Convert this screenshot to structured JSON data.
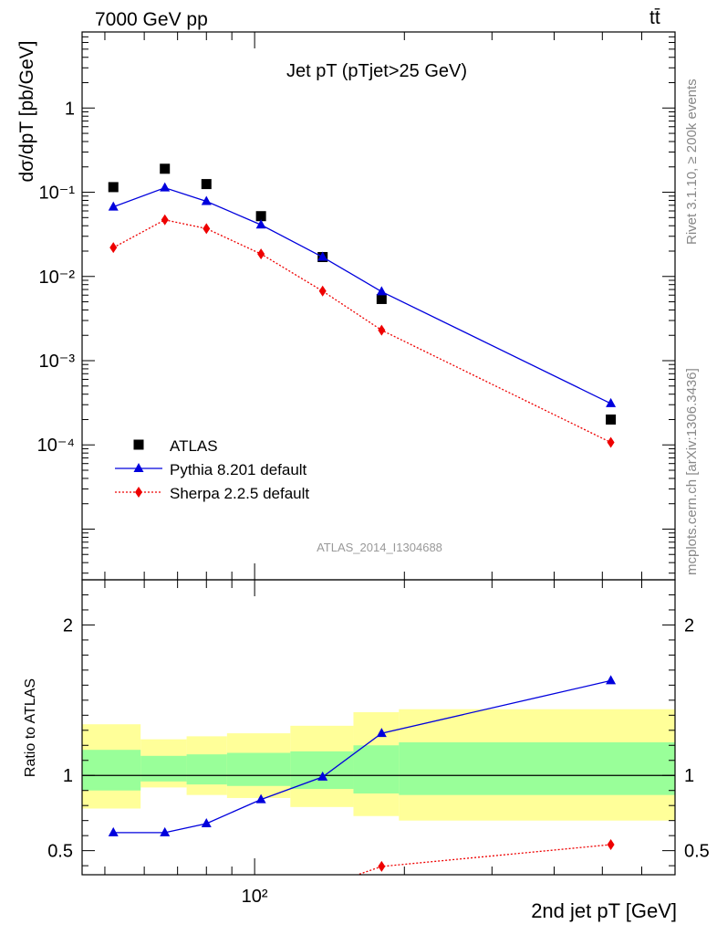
{
  "header": {
    "left": "7000 GeV pp",
    "right": "tt̄"
  },
  "side_labels": {
    "rivet": "Rivet 3.1.10, ≥ 200k events",
    "mcplots": "mcplots.cern.ch [arXiv:1306.3436]"
  },
  "chart_data": [
    {
      "type": "scatter",
      "title": "Jet pT (pTjet>25 GeV)",
      "ylabel": "dσ/dpT [pb/GeV]",
      "xlabel": "2nd jet pT [GeV]",
      "xscale": "log",
      "yscale": "log",
      "xlim": [
        45,
        700
      ],
      "ylim": [
        2.5e-06,
        8
      ],
      "x_tick_labels": [
        "10²"
      ],
      "y_tick_labels": [
        "10⁻⁴",
        "10⁻³",
        "10⁻²",
        "10⁻¹",
        "1"
      ],
      "watermark": "ATLAS_2014_I1304688",
      "legend_position": "lower-left",
      "x": [
        52,
        66,
        80,
        103,
        137,
        180,
        520
      ],
      "series": [
        {
          "name": "ATLAS",
          "color": "#000000",
          "marker": "square",
          "values": [
            0.115,
            0.19,
            0.125,
            0.052,
            0.017,
            0.0054,
            0.0002
          ]
        },
        {
          "name": "Pythia 8.201 default",
          "color": "#0000dd",
          "marker": "triangle",
          "line": "solid",
          "values": [
            0.067,
            0.113,
            0.078,
            0.041,
            0.017,
            0.0066,
            0.00031
          ]
        },
        {
          "name": "Sherpa 2.2.5 default",
          "color": "#ee0000",
          "marker": "diamond",
          "line": "dotted",
          "values": [
            0.022,
            0.047,
            0.037,
            0.0185,
            0.0067,
            0.0023,
            0.000107
          ]
        }
      ]
    },
    {
      "type": "line",
      "ylabel": "Ratio to ATLAS",
      "xscale": "log",
      "xlim": [
        45,
        700
      ],
      "ylim": [
        0.34,
        2.3
      ],
      "y_tick_labels": [
        "0.5",
        "1",
        "2"
      ],
      "reference_line": 1,
      "uncertainty_bands": {
        "bin_edges": [
          45,
          59,
          73,
          88,
          118,
          158,
          195,
          700
        ],
        "yellow_low": [
          0.78,
          0.92,
          0.87,
          0.85,
          0.79,
          0.73,
          0.7
        ],
        "yellow_high": [
          1.34,
          1.24,
          1.26,
          1.28,
          1.33,
          1.42,
          1.44
        ],
        "yellow_color": "#ffff99",
        "green_low": [
          0.9,
          0.96,
          0.94,
          0.93,
          0.91,
          0.88,
          0.87
        ],
        "green_high": [
          1.17,
          1.13,
          1.14,
          1.15,
          1.16,
          1.2,
          1.22
        ],
        "green_color": "#99ff99"
      },
      "x": [
        52,
        66,
        80,
        103,
        137,
        180,
        520
      ],
      "series": [
        {
          "name": "Pythia 8.201 default",
          "color": "#0000dd",
          "marker": "triangle",
          "line": "solid",
          "values": [
            0.62,
            0.62,
            0.68,
            0.84,
            0.99,
            1.28,
            1.63
          ]
        },
        {
          "name": "Sherpa 2.2.5 default",
          "color": "#ee0000",
          "marker": "diamond",
          "line": "dotted",
          "values": [
            null,
            null,
            null,
            null,
            null,
            0.395,
            0.54
          ]
        }
      ]
    }
  ]
}
